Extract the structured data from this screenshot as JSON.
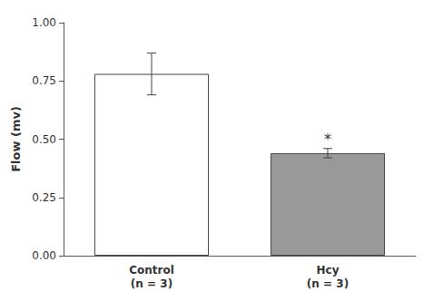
{
  "chart_data": {
    "type": "bar",
    "categories": [
      "Control\n(n = 3)",
      "Hcy\n(n = 3)"
    ],
    "values": [
      0.78,
      0.44
    ],
    "errors": [
      0.09,
      0.02
    ],
    "colors": [
      "#ffffff",
      "#999999"
    ],
    "ylabel": "Flow (mv)",
    "ylim": [
      0.0,
      1.0
    ],
    "yticks": [
      {
        "value": 0,
        "label": "0.00"
      },
      0.25,
      {
        "value": 0.5,
        "label": "0.50"
      },
      0.75,
      {
        "value": 1.0,
        "label": "1.00"
      }
    ],
    "annotations": [
      {
        "text": "*",
        "category": "Hcy\n(n = 3)"
      }
    ],
    "grid": false
  }
}
